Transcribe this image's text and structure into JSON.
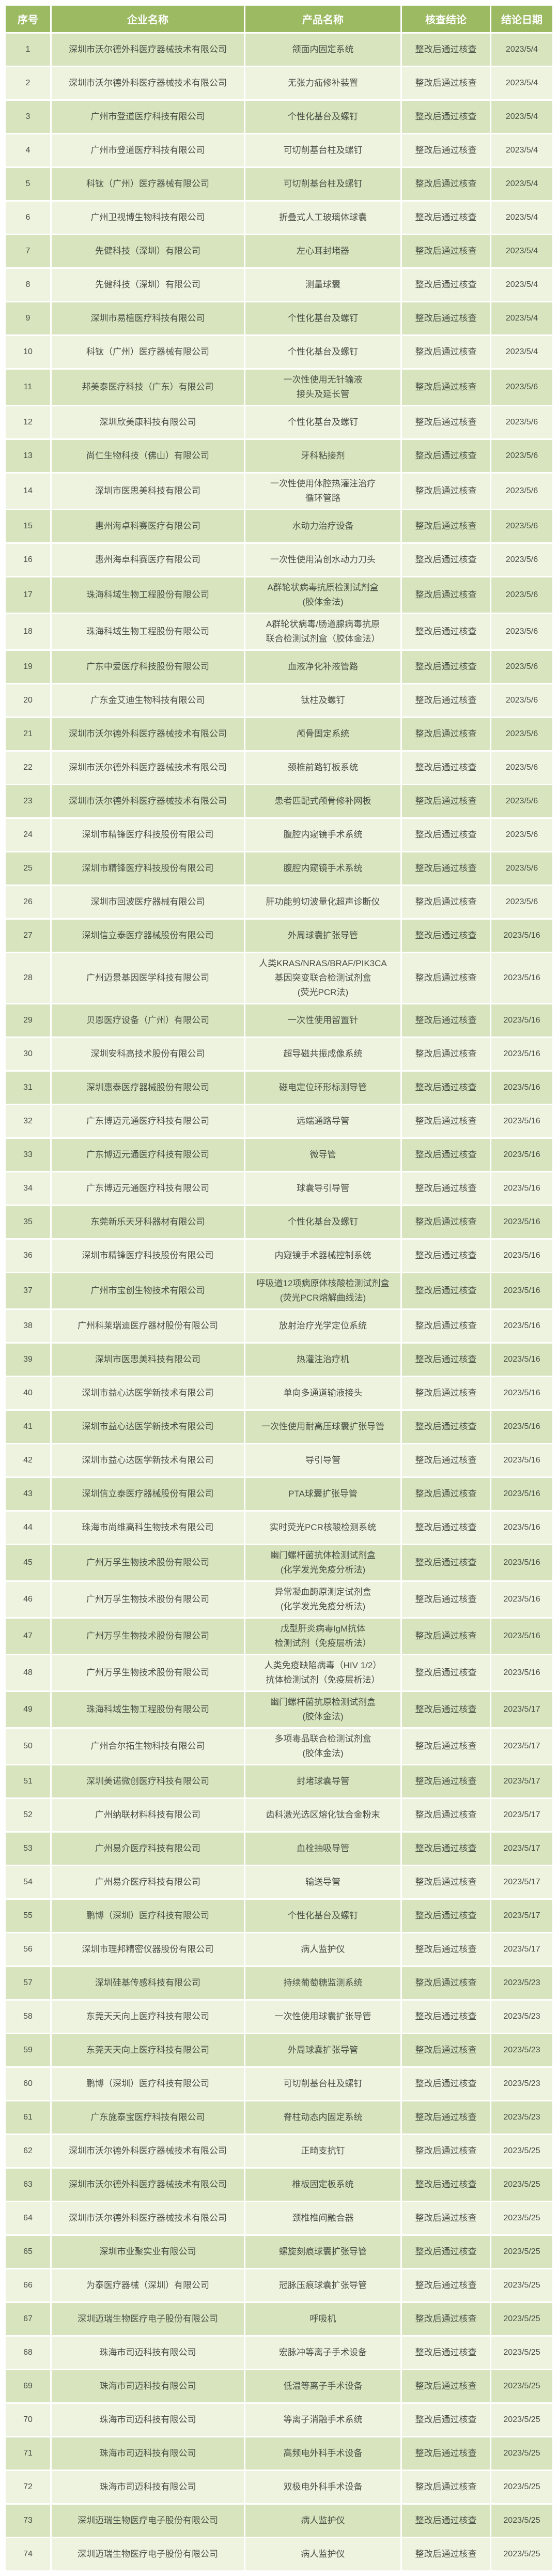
{
  "colors": {
    "header_bg": "#9CBA62",
    "header_text": "#FFFFFF",
    "row_odd_bg": "#D8E4BE",
    "row_even_bg": "#EDF3DF",
    "body_text": "#4A5046",
    "gap": "#FFFFFF"
  },
  "table": {
    "columns": [
      "序号",
      "企业名称",
      "产品名称",
      "核查结论",
      "结论日期"
    ],
    "rows": [
      {
        "no": "1",
        "company": "深圳市沃尔德外科医疗器械技术有限公司",
        "product": "颌面内固定系统",
        "conclusion": "整改后通过核查",
        "date": "2023/5/4"
      },
      {
        "no": "2",
        "company": "深圳市沃尔德外科医疗器械技术有限公司",
        "product": "无张力疝修补装置",
        "conclusion": "整改后通过核查",
        "date": "2023/5/4"
      },
      {
        "no": "3",
        "company": "广州市登道医疗科技有限公司",
        "product": "个性化基台及螺钉",
        "conclusion": "整改后通过核查",
        "date": "2023/5/4"
      },
      {
        "no": "4",
        "company": "广州市登道医疗科技有限公司",
        "product": "可切削基台柱及螺钉",
        "conclusion": "整改后通过核查",
        "date": "2023/5/4"
      },
      {
        "no": "5",
        "company": "科钛（广州）医疗器械有限公司",
        "product": "可切削基台柱及螺钉",
        "conclusion": "整改后通过核查",
        "date": "2023/5/4"
      },
      {
        "no": "6",
        "company": "广州卫视博生物科技有限公司",
        "product": "折叠式人工玻璃体球囊",
        "conclusion": "整改后通过核查",
        "date": "2023/5/4"
      },
      {
        "no": "7",
        "company": "先健科技（深圳）有限公司",
        "product": "左心耳封堵器",
        "conclusion": "整改后通过核查",
        "date": "2023/5/4"
      },
      {
        "no": "8",
        "company": "先健科技（深圳）有限公司",
        "product": "测量球囊",
        "conclusion": "整改后通过核查",
        "date": "2023/5/4"
      },
      {
        "no": "9",
        "company": "深圳市易植医疗科技有限公司",
        "product": "个性化基台及螺钉",
        "conclusion": "整改后通过核查",
        "date": "2023/5/4"
      },
      {
        "no": "10",
        "company": "科钛（广州）医疗器械有限公司",
        "product": "个性化基台及螺钉",
        "conclusion": "整改后通过核查",
        "date": "2023/5/4"
      },
      {
        "no": "11",
        "company": "邦美泰医疗科技（广东）有限公司",
        "product": "一次性使用无针输液\n接头及延长管",
        "conclusion": "整改后通过核查",
        "date": "2023/5/6"
      },
      {
        "no": "12",
        "company": "深圳欣美康科技有限公司",
        "product": "个性化基台及螺钉",
        "conclusion": "整改后通过核查",
        "date": "2023/5/6"
      },
      {
        "no": "13",
        "company": "尚仁生物科技（佛山）有限公司",
        "product": "牙科粘接剂",
        "conclusion": "整改后通过核查",
        "date": "2023/5/6"
      },
      {
        "no": "14",
        "company": "深圳市医思美科技有限公司",
        "product": "一次性使用体腔热灌注治疗\n循环管路",
        "conclusion": "整改后通过核查",
        "date": "2023/5/6"
      },
      {
        "no": "15",
        "company": "惠州海卓科赛医疗有限公司",
        "product": "水动力治疗设备",
        "conclusion": "整改后通过核查",
        "date": "2023/5/6"
      },
      {
        "no": "16",
        "company": "惠州海卓科赛医疗有限公司",
        "product": "一次性使用清创水动力刀头",
        "conclusion": "整改后通过核查",
        "date": "2023/5/6"
      },
      {
        "no": "17",
        "company": "珠海科域生物工程股份有限公司",
        "product": "A群轮状病毒抗原检测试剂盒\n(胶体金法)",
        "conclusion": "整改后通过核查",
        "date": "2023/5/6"
      },
      {
        "no": "18",
        "company": "珠海科域生物工程股份有限公司",
        "product": "A群轮状病毒/肠道腺病毒抗原\n联合检测试剂盒（胶体金法）",
        "conclusion": "整改后通过核查",
        "date": "2023/5/6"
      },
      {
        "no": "19",
        "company": "广东中爱医疗科技股份有限公司",
        "product": "血液净化补液管路",
        "conclusion": "整改后通过核查",
        "date": "2023/5/6"
      },
      {
        "no": "20",
        "company": "广东金艾迪生物科技有限公司",
        "product": "钛柱及螺钉",
        "conclusion": "整改后通过核查",
        "date": "2023/5/6"
      },
      {
        "no": "21",
        "company": "深圳市沃尔德外科医疗器械技术有限公司",
        "product": "颅骨固定系统",
        "conclusion": "整改后通过核查",
        "date": "2023/5/6"
      },
      {
        "no": "22",
        "company": "深圳市沃尔德外科医疗器械技术有限公司",
        "product": "颈椎前路钉板系统",
        "conclusion": "整改后通过核查",
        "date": "2023/5/6"
      },
      {
        "no": "23",
        "company": "深圳市沃尔德外科医疗器械技术有限公司",
        "product": "患者匹配式颅骨修补网板",
        "conclusion": "整改后通过核查",
        "date": "2023/5/6"
      },
      {
        "no": "24",
        "company": "深圳市精锋医疗科技股份有限公司",
        "product": "腹腔内窥镜手术系统",
        "conclusion": "整改后通过核查",
        "date": "2023/5/6"
      },
      {
        "no": "25",
        "company": "深圳市精锋医疗科技股份有限公司",
        "product": "腹腔内窥镜手术系统",
        "conclusion": "整改后通过核查",
        "date": "2023/5/6"
      },
      {
        "no": "26",
        "company": "深圳市回波医疗器械有限公司",
        "product": "肝功能剪切波量化超声诊断仪",
        "conclusion": "整改后通过核查",
        "date": "2023/5/6"
      },
      {
        "no": "27",
        "company": "深圳信立泰医疗器械股份有限公司",
        "product": "外周球囊扩张导管",
        "conclusion": "整改后通过核查",
        "date": "2023/5/16"
      },
      {
        "no": "28",
        "company": "广州迈景基因医学科技有限公司",
        "product": "人类KRAS/NRAS/BRAF/PIK3CA\n基因突变联合检测试剂盒\n(荧光PCR法)",
        "conclusion": "整改后通过核查",
        "date": "2023/5/16"
      },
      {
        "no": "29",
        "company": "贝恩医疗设备（广州）有限公司",
        "product": "一次性使用留置针",
        "conclusion": "整改后通过核查",
        "date": "2023/5/16"
      },
      {
        "no": "30",
        "company": "深圳安科高技术股份有限公司",
        "product": "超导磁共振成像系统",
        "conclusion": "整改后通过核查",
        "date": "2023/5/16"
      },
      {
        "no": "31",
        "company": "深圳惠泰医疗器械股份有限公司",
        "product": "磁电定位环形标测导管",
        "conclusion": "整改后通过核查",
        "date": "2023/5/16"
      },
      {
        "no": "32",
        "company": "广东博迈元通医疗科技有限公司",
        "product": "远端通路导管",
        "conclusion": "整改后通过核查",
        "date": "2023/5/16"
      },
      {
        "no": "33",
        "company": "广东博迈元通医疗科技有限公司",
        "product": "微导管",
        "conclusion": "整改后通过核查",
        "date": "2023/5/16"
      },
      {
        "no": "34",
        "company": "广东博迈元通医疗科技有限公司",
        "product": "球囊导引导管",
        "conclusion": "整改后通过核查",
        "date": "2023/5/16"
      },
      {
        "no": "35",
        "company": "东莞新乐天牙科器材有限公司",
        "product": "个性化基台及螺钉",
        "conclusion": "整改后通过核查",
        "date": "2023/5/16"
      },
      {
        "no": "36",
        "company": "深圳市精锋医疗科技股份有限公司",
        "product": "内窥镜手术器械控制系统",
        "conclusion": "整改后通过核查",
        "date": "2023/5/16"
      },
      {
        "no": "37",
        "company": "广州市宝创生物技术有限公司",
        "product": "呼吸道12项病原体核酸检测试剂盒\n(荧光PCR熔解曲线法)",
        "conclusion": "整改后通过核查",
        "date": "2023/5/16"
      },
      {
        "no": "38",
        "company": "广州科莱瑞迪医疗器材股份有限公司",
        "product": "放射治疗光学定位系统",
        "conclusion": "整改后通过核查",
        "date": "2023/5/16"
      },
      {
        "no": "39",
        "company": "深圳市医思美科技有限公司",
        "product": "热灌注治疗机",
        "conclusion": "整改后通过核查",
        "date": "2023/5/16"
      },
      {
        "no": "40",
        "company": "深圳市益心达医学新技术有限公司",
        "product": "单向多通道输液接头",
        "conclusion": "整改后通过核查",
        "date": "2023/5/16"
      },
      {
        "no": "41",
        "company": "深圳市益心达医学新技术有限公司",
        "product": "一次性使用耐高压球囊扩张导管",
        "conclusion": "整改后通过核查",
        "date": "2023/5/16"
      },
      {
        "no": "42",
        "company": "深圳市益心达医学新技术有限公司",
        "product": "导引导管",
        "conclusion": "整改后通过核查",
        "date": "2023/5/16"
      },
      {
        "no": "43",
        "company": "深圳信立泰医疗器械股份有限公司",
        "product": "PTA球囊扩张导管",
        "conclusion": "整改后通过核查",
        "date": "2023/5/16"
      },
      {
        "no": "44",
        "company": "珠海市尚维高科生物技术有限公司",
        "product": "实时荧光PCR核酸检测系统",
        "conclusion": "整改后通过核查",
        "date": "2023/5/16"
      },
      {
        "no": "45",
        "company": "广州万孚生物技术股份有限公司",
        "product": "幽门螺杆菌抗体检测试剂盒\n(化学发光免疫分析法)",
        "conclusion": "整改后通过核查",
        "date": "2023/5/16"
      },
      {
        "no": "46",
        "company": "广州万孚生物技术股份有限公司",
        "product": "异常凝血酶原测定试剂盒\n(化学发光免疫分析法)",
        "conclusion": "整改后通过核查",
        "date": "2023/5/16"
      },
      {
        "no": "47",
        "company": "广州万孚生物技术股份有限公司",
        "product": "戊型肝炎病毒IgM抗体\n检测试剂（免疫层析法）",
        "conclusion": "整改后通过核查",
        "date": "2023/5/16"
      },
      {
        "no": "48",
        "company": "广州万孚生物技术股份有限公司",
        "product": "人类免疫缺陷病毒（HIV 1/2）\n抗体检测试剂（免疫层析法）",
        "conclusion": "整改后通过核查",
        "date": "2023/5/16"
      },
      {
        "no": "49",
        "company": "珠海科域生物工程股份有限公司",
        "product": "幽门螺杆菌抗原检测试剂盒\n(胶体金法)",
        "conclusion": "整改后通过核查",
        "date": "2023/5/17"
      },
      {
        "no": "50",
        "company": "广州合尔拓生物科技有限公司",
        "product": "多项毒品联合检测试剂盒\n(胶体金法)",
        "conclusion": "整改后通过核查",
        "date": "2023/5/17"
      },
      {
        "no": "51",
        "company": "深圳美诺微创医疗科技有限公司",
        "product": "封堵球囊导管",
        "conclusion": "整改后通过核查",
        "date": "2023/5/17"
      },
      {
        "no": "52",
        "company": "广州纳联材料科技有限公司",
        "product": "齿科激光选区熔化钛合金粉末",
        "conclusion": "整改后通过核查",
        "date": "2023/5/17"
      },
      {
        "no": "53",
        "company": "广州易介医疗科技有限公司",
        "product": "血栓抽吸导管",
        "conclusion": "整改后通过核查",
        "date": "2023/5/17"
      },
      {
        "no": "54",
        "company": "广州易介医疗科技有限公司",
        "product": "输送导管",
        "conclusion": "整改后通过核查",
        "date": "2023/5/17"
      },
      {
        "no": "55",
        "company": "鹏博（深圳）医疗科技有限公司",
        "product": "个性化基台及螺钉",
        "conclusion": "整改后通过核查",
        "date": "2023/5/17"
      },
      {
        "no": "56",
        "company": "深圳市理邦精密仪器股份有限公司",
        "product": "病人监护仪",
        "conclusion": "整改后通过核查",
        "date": "2023/5/17"
      },
      {
        "no": "57",
        "company": "深圳硅基传感科技有限公司",
        "product": "持续葡萄糖监测系统",
        "conclusion": "整改后通过核查",
        "date": "2023/5/23"
      },
      {
        "no": "58",
        "company": "东莞天天向上医疗科技有限公司",
        "product": "一次性使用球囊扩张导管",
        "conclusion": "整改后通过核查",
        "date": "2023/5/23"
      },
      {
        "no": "59",
        "company": "东莞天天向上医疗科技有限公司",
        "product": "外周球囊扩张导管",
        "conclusion": "整改后通过核查",
        "date": "2023/5/23"
      },
      {
        "no": "60",
        "company": "鹏博（深圳）医疗科技有限公司",
        "product": "可切削基台柱及螺钉",
        "conclusion": "整改后通过核查",
        "date": "2023/5/23"
      },
      {
        "no": "61",
        "company": "广东施泰宝医疗科技有限公司",
        "product": "脊柱动态内固定系统",
        "conclusion": "整改后通过核查",
        "date": "2023/5/23"
      },
      {
        "no": "62",
        "company": "深圳市沃尔德外科医疗器械技术有限公司",
        "product": "正畸支抗钉",
        "conclusion": "整改后通过核查",
        "date": "2023/5/25"
      },
      {
        "no": "63",
        "company": "深圳市沃尔德外科医疗器械技术有限公司",
        "product": "椎板固定板系统",
        "conclusion": "整改后通过核查",
        "date": "2023/5/25"
      },
      {
        "no": "64",
        "company": "深圳市沃尔德外科医疗器械技术有限公司",
        "product": "颈椎椎间融合器",
        "conclusion": "整改后通过核查",
        "date": "2023/5/25"
      },
      {
        "no": "65",
        "company": "深圳市业聚实业有限公司",
        "product": "螺旋刻痕球囊扩张导管",
        "conclusion": "整改后通过核查",
        "date": "2023/5/25"
      },
      {
        "no": "66",
        "company": "为泰医疗器械（深圳）有限公司",
        "product": "冠脉压痕球囊扩张导管",
        "conclusion": "整改后通过核查",
        "date": "2023/5/25"
      },
      {
        "no": "67",
        "company": "深圳迈瑞生物医疗电子股份有限公司",
        "product": "呼吸机",
        "conclusion": "整改后通过核查",
        "date": "2023/5/25"
      },
      {
        "no": "68",
        "company": "珠海市司迈科技有限公司",
        "product": "宏脉冲等离子手术设备",
        "conclusion": "整改后通过核查",
        "date": "2023/5/25"
      },
      {
        "no": "69",
        "company": "珠海市司迈科技有限公司",
        "product": "低温等离子手术设备",
        "conclusion": "整改后通过核查",
        "date": "2023/5/25"
      },
      {
        "no": "70",
        "company": "珠海市司迈科技有限公司",
        "product": "等离子消融手术系统",
        "conclusion": "整改后通过核查",
        "date": "2023/5/25"
      },
      {
        "no": "71",
        "company": "珠海市司迈科技有限公司",
        "product": "高频电外科手术设备",
        "conclusion": "整改后通过核查",
        "date": "2023/5/25"
      },
      {
        "no": "72",
        "company": "珠海市司迈科技有限公司",
        "product": "双极电外科手术设备",
        "conclusion": "整改后通过核查",
        "date": "2023/5/25"
      },
      {
        "no": "73",
        "company": "深圳迈瑞生物医疗电子股份有限公司",
        "product": "病人监护仪",
        "conclusion": "整改后通过核查",
        "date": "2023/5/25"
      },
      {
        "no": "74",
        "company": "深圳迈瑞生物医疗电子股份有限公司",
        "product": "病人监护仪",
        "conclusion": "整改后通过核查",
        "date": "2023/5/25"
      }
    ]
  }
}
